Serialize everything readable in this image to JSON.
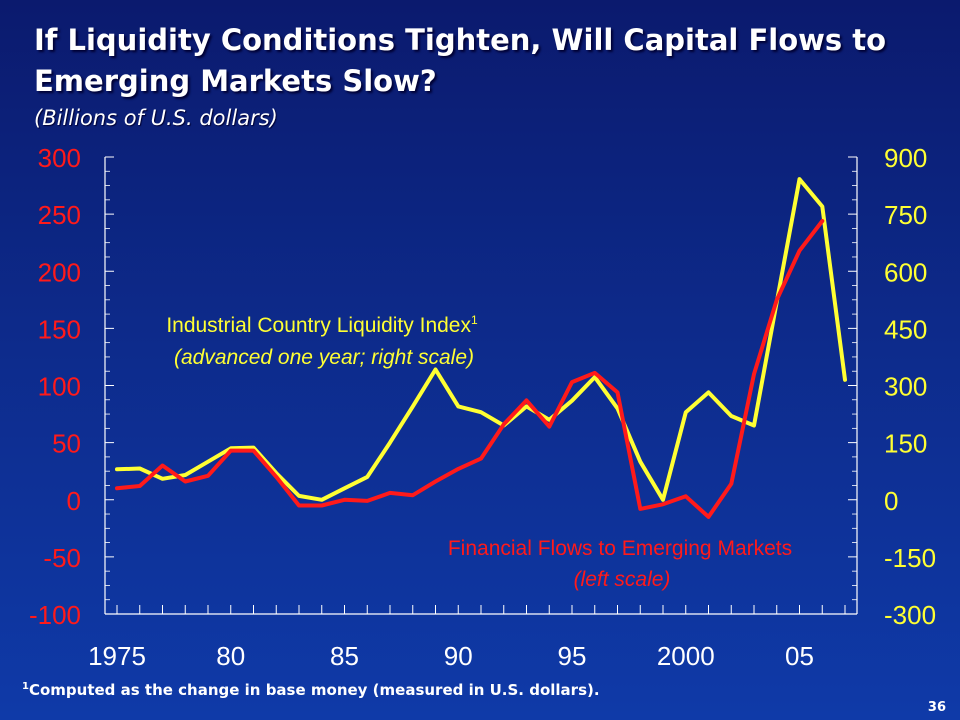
{
  "slide": {
    "title": "If Liquidity Conditions Tighten, Will Capital Flows to Emerging Markets Slow?",
    "subtitle": "(Billions of U.S. dollars)",
    "footnote": "Computed as the change in base money (measured in U.S. dollars).",
    "footnote_marker": "1",
    "page_number": "36"
  },
  "chart_data": {
    "type": "line",
    "x_tick_labels": [
      "1975",
      "80",
      "85",
      "90",
      "95",
      "2000",
      "05"
    ],
    "x_range": [
      1975,
      2007.5
    ],
    "left_axis": {
      "ticks": [
        "300",
        "250",
        "200",
        "150",
        "100",
        "50",
        "0",
        "-50",
        "-100"
      ],
      "range": [
        -100,
        300
      ],
      "color": "#ff1a1a"
    },
    "right_axis": {
      "ticks": [
        "900",
        "750",
        "600",
        "450",
        "300",
        "150",
        "0",
        "-150",
        "-300"
      ],
      "range": [
        -300,
        900
      ],
      "color": "#ffff33"
    },
    "series": [
      {
        "name": "Industrial Country Liquidity Index",
        "name_superscript": "1",
        "label_line2": "(advanced one year; right scale)",
        "axis": "right",
        "color": "#ffff33",
        "x": [
          1975,
          1976,
          1977,
          1978,
          1979,
          1980,
          1981,
          1982,
          1983,
          1984,
          1985,
          1986,
          1987,
          1988,
          1989,
          1990,
          1991,
          1992,
          1993,
          1994,
          1995,
          1996,
          1997,
          1998,
          1999,
          2000,
          2001,
          2002,
          2003,
          2004,
          2005,
          2006,
          2007
        ],
        "values": [
          80,
          82,
          55,
          65,
          100,
          135,
          137,
          70,
          10,
          0,
          30,
          60,
          150,
          245,
          342,
          245,
          230,
          195,
          245,
          210,
          260,
          322,
          240,
          100,
          0,
          230,
          282,
          220,
          195,
          520,
          842,
          770,
          315
        ]
      },
      {
        "name": "Financial Flows to Emerging Markets",
        "label_line2": "(left scale)",
        "axis": "left",
        "color": "#ff1a1a",
        "x": [
          1975,
          1976,
          1977,
          1978,
          1979,
          1980,
          1981,
          1982,
          1983,
          1984,
          1985,
          1986,
          1987,
          1988,
          1989,
          1990,
          1991,
          1992,
          1993,
          1994,
          1995,
          1996,
          1997,
          1998,
          1999,
          2000,
          2001,
          2002,
          2003,
          2004,
          2005,
          2006
        ],
        "values": [
          10,
          12,
          30,
          16,
          21,
          43,
          43,
          20,
          -5,
          -5,
          0,
          -1,
          6,
          4,
          16,
          27,
          36,
          66,
          87,
          64,
          103,
          111,
          94,
          -8,
          -4,
          3,
          -15,
          14,
          110,
          175,
          218,
          244
        ]
      }
    ]
  }
}
